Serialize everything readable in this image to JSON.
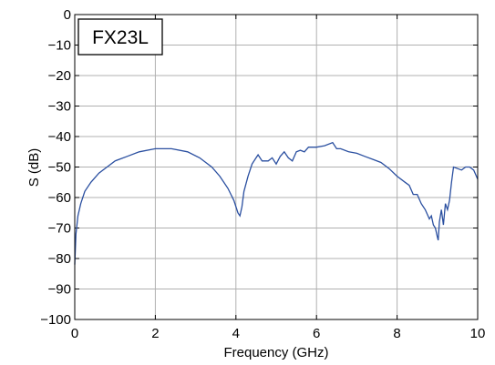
{
  "chart_data": {
    "type": "line",
    "title": "",
    "xlabel": "Frequency (GHz)",
    "ylabel": "S (dB)",
    "xlim": [
      0,
      10
    ],
    "ylim": [
      -100,
      0
    ],
    "xticks": [
      0,
      2,
      4,
      6,
      8,
      10
    ],
    "yticks": [
      0,
      -10,
      -20,
      -30,
      -40,
      -50,
      -60,
      -70,
      -80,
      -90,
      -100
    ],
    "grid": true,
    "annotation": "FX23L",
    "line_color": "#2a4fa0",
    "series": [
      {
        "x": [
          0.0,
          0.03,
          0.08,
          0.15,
          0.25,
          0.4,
          0.6,
          0.8,
          1.0,
          1.3,
          1.6,
          2.0,
          2.4,
          2.8,
          3.1,
          3.4,
          3.6,
          3.8,
          3.95,
          4.05,
          4.1,
          4.15,
          4.2,
          4.3,
          4.4,
          4.5,
          4.55,
          4.65,
          4.8,
          4.9,
          5.0,
          5.1,
          5.2,
          5.3,
          5.4,
          5.5,
          5.6,
          5.7,
          5.8,
          6.0,
          6.2,
          6.4,
          6.5,
          6.6,
          6.8,
          7.0,
          7.2,
          7.4,
          7.6,
          7.8,
          8.0,
          8.2,
          8.3,
          8.4,
          8.5,
          8.6,
          8.7,
          8.8,
          8.85,
          8.9,
          8.95,
          9.0,
          9.02,
          9.05,
          9.1,
          9.15,
          9.2,
          9.25,
          9.3,
          9.35,
          9.4,
          9.5,
          9.6,
          9.7,
          9.8,
          9.9,
          10.0
        ],
        "y": [
          -82,
          -72,
          -66,
          -62,
          -58,
          -55,
          -52,
          -50,
          -48,
          -46.5,
          -45,
          -44,
          -44,
          -45,
          -47,
          -50,
          -53,
          -57,
          -61,
          -65,
          -66,
          -63,
          -58,
          -53,
          -49,
          -47,
          -46,
          -48,
          -48,
          -47,
          -49,
          -46.5,
          -45,
          -47,
          -48,
          -45,
          -44.5,
          -45,
          -43.5,
          -43.5,
          -43,
          -42,
          -44,
          -44,
          -45,
          -45.5,
          -46.5,
          -47.5,
          -48.5,
          -50.5,
          -53,
          -55,
          -56,
          -59,
          -59,
          -62,
          -64,
          -67,
          -66,
          -69,
          -70,
          -73,
          -74,
          -68,
          -64,
          -69,
          -62,
          -64,
          -61,
          -55,
          -50,
          -50.5,
          -51,
          -50,
          -50,
          -51,
          -54
        ]
      }
    ]
  }
}
